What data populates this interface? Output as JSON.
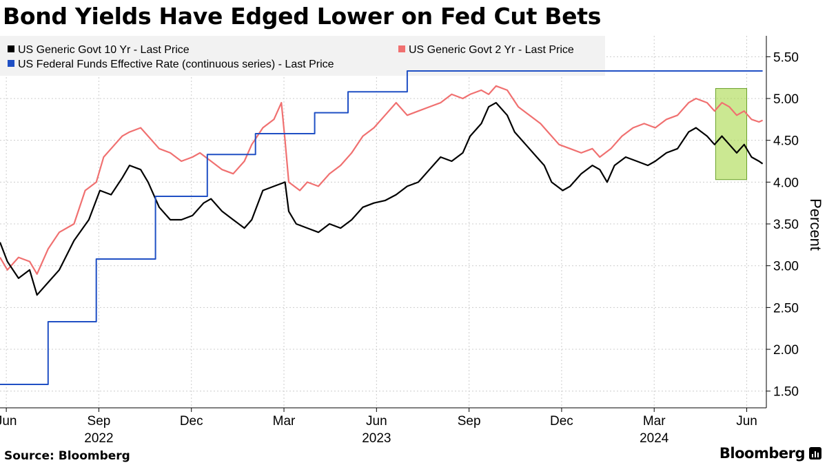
{
  "title": "Bond Yields Have Edged Lower on Fed Cut Bets",
  "source": "Source: Bloomberg",
  "brand": "Bloomberg",
  "chart_data": {
    "type": "line",
    "ylabel": "Percent",
    "ylim": [
      1.3,
      5.75
    ],
    "yticks": [
      1.5,
      2.0,
      2.5,
      3.0,
      3.5,
      4.0,
      4.5,
      5.0,
      5.5
    ],
    "ytick_labels": [
      "1.50",
      "2.00",
      "2.50",
      "3.00",
      "3.50",
      "4.00",
      "4.50",
      "5.00",
      "5.50"
    ],
    "xlim": [
      2022.4,
      2024.47
    ],
    "month_ticks": [
      {
        "label": "Jun",
        "x": 2022.417
      },
      {
        "label": "Sep",
        "x": 2022.667
      },
      {
        "label": "Dec",
        "x": 2022.917
      },
      {
        "label": "Mar",
        "x": 2023.167
      },
      {
        "label": "Jun",
        "x": 2023.417
      },
      {
        "label": "Sep",
        "x": 2023.667
      },
      {
        "label": "Dec",
        "x": 2023.917
      },
      {
        "label": "Mar",
        "x": 2024.167
      },
      {
        "label": "Jun",
        "x": 2024.417
      }
    ],
    "year_labels": [
      {
        "label": "2022",
        "x": 2022.667
      },
      {
        "label": "2023",
        "x": 2023.417
      },
      {
        "label": "2024",
        "x": 2024.167
      }
    ],
    "highlight": {
      "x": [
        2024.333,
        2024.417
      ],
      "y": [
        4.03,
        5.12
      ],
      "color": "#a8d84a"
    },
    "series": [
      {
        "name": "US Generic Govt 10 Yr - Last Price",
        "color": "#000000",
        "points": [
          [
            2022.4,
            3.28
          ],
          [
            2022.42,
            3.05
          ],
          [
            2022.45,
            2.85
          ],
          [
            2022.48,
            2.95
          ],
          [
            2022.5,
            2.65
          ],
          [
            2022.53,
            2.8
          ],
          [
            2022.56,
            2.95
          ],
          [
            2022.6,
            3.3
          ],
          [
            2022.64,
            3.55
          ],
          [
            2022.67,
            3.9
          ],
          [
            2022.7,
            3.85
          ],
          [
            2022.73,
            4.05
          ],
          [
            2022.75,
            4.2
          ],
          [
            2022.78,
            4.15
          ],
          [
            2022.8,
            4.0
          ],
          [
            2022.83,
            3.7
          ],
          [
            2022.86,
            3.55
          ],
          [
            2022.89,
            3.55
          ],
          [
            2022.92,
            3.6
          ],
          [
            2022.95,
            3.75
          ],
          [
            2022.97,
            3.8
          ],
          [
            2023.0,
            3.65
          ],
          [
            2023.03,
            3.55
          ],
          [
            2023.06,
            3.45
          ],
          [
            2023.08,
            3.55
          ],
          [
            2023.11,
            3.9
          ],
          [
            2023.14,
            3.95
          ],
          [
            2023.17,
            4.0
          ],
          [
            2023.18,
            3.65
          ],
          [
            2023.2,
            3.5
          ],
          [
            2023.23,
            3.45
          ],
          [
            2023.26,
            3.4
          ],
          [
            2023.29,
            3.5
          ],
          [
            2023.32,
            3.45
          ],
          [
            2023.35,
            3.55
          ],
          [
            2023.38,
            3.7
          ],
          [
            2023.41,
            3.75
          ],
          [
            2023.44,
            3.78
          ],
          [
            2023.47,
            3.85
          ],
          [
            2023.5,
            3.95
          ],
          [
            2023.53,
            4.0
          ],
          [
            2023.56,
            4.15
          ],
          [
            2023.59,
            4.3
          ],
          [
            2023.62,
            4.25
          ],
          [
            2023.65,
            4.35
          ],
          [
            2023.67,
            4.55
          ],
          [
            2023.7,
            4.7
          ],
          [
            2023.72,
            4.9
          ],
          [
            2023.74,
            4.95
          ],
          [
            2023.77,
            4.8
          ],
          [
            2023.79,
            4.6
          ],
          [
            2023.82,
            4.45
          ],
          [
            2023.85,
            4.3
          ],
          [
            2023.87,
            4.2
          ],
          [
            2023.89,
            4.0
          ],
          [
            2023.92,
            3.9
          ],
          [
            2023.94,
            3.95
          ],
          [
            2023.97,
            4.1
          ],
          [
            2024.0,
            4.2
          ],
          [
            2024.02,
            4.15
          ],
          [
            2024.04,
            4.0
          ],
          [
            2024.06,
            4.2
          ],
          [
            2024.09,
            4.3
          ],
          [
            2024.12,
            4.25
          ],
          [
            2024.15,
            4.2
          ],
          [
            2024.17,
            4.25
          ],
          [
            2024.2,
            4.35
          ],
          [
            2024.23,
            4.4
          ],
          [
            2024.26,
            4.6
          ],
          [
            2024.28,
            4.65
          ],
          [
            2024.31,
            4.55
          ],
          [
            2024.33,
            4.45
          ],
          [
            2024.35,
            4.55
          ],
          [
            2024.37,
            4.45
          ],
          [
            2024.39,
            4.35
          ],
          [
            2024.41,
            4.45
          ],
          [
            2024.43,
            4.3
          ],
          [
            2024.45,
            4.25
          ],
          [
            2024.46,
            4.22
          ]
        ]
      },
      {
        "name": "US Generic Govt 2 Yr - Last Price",
        "color": "#f07070",
        "points": [
          [
            2022.4,
            3.1
          ],
          [
            2022.42,
            2.95
          ],
          [
            2022.45,
            3.1
          ],
          [
            2022.48,
            3.05
          ],
          [
            2022.5,
            2.9
          ],
          [
            2022.53,
            3.2
          ],
          [
            2022.56,
            3.4
          ],
          [
            2022.6,
            3.5
          ],
          [
            2022.63,
            3.9
          ],
          [
            2022.66,
            4.0
          ],
          [
            2022.68,
            4.3
          ],
          [
            2022.7,
            4.4
          ],
          [
            2022.73,
            4.55
          ],
          [
            2022.75,
            4.6
          ],
          [
            2022.78,
            4.65
          ],
          [
            2022.8,
            4.55
          ],
          [
            2022.83,
            4.4
          ],
          [
            2022.86,
            4.35
          ],
          [
            2022.89,
            4.25
          ],
          [
            2022.92,
            4.3
          ],
          [
            2022.94,
            4.35
          ],
          [
            2022.97,
            4.25
          ],
          [
            2023.0,
            4.15
          ],
          [
            2023.03,
            4.1
          ],
          [
            2023.06,
            4.25
          ],
          [
            2023.08,
            4.45
          ],
          [
            2023.11,
            4.65
          ],
          [
            2023.14,
            4.75
          ],
          [
            2023.16,
            4.95
          ],
          [
            2023.17,
            4.5
          ],
          [
            2023.18,
            4.0
          ],
          [
            2023.21,
            3.9
          ],
          [
            2023.23,
            4.0
          ],
          [
            2023.26,
            3.95
          ],
          [
            2023.29,
            4.1
          ],
          [
            2023.32,
            4.2
          ],
          [
            2023.35,
            4.35
          ],
          [
            2023.38,
            4.55
          ],
          [
            2023.41,
            4.65
          ],
          [
            2023.44,
            4.8
          ],
          [
            2023.47,
            4.95
          ],
          [
            2023.5,
            4.8
          ],
          [
            2023.53,
            4.85
          ],
          [
            2023.56,
            4.9
          ],
          [
            2023.59,
            4.95
          ],
          [
            2023.62,
            5.05
          ],
          [
            2023.65,
            5.0
          ],
          [
            2023.67,
            5.05
          ],
          [
            2023.7,
            5.1
          ],
          [
            2023.72,
            5.05
          ],
          [
            2023.74,
            5.15
          ],
          [
            2023.77,
            5.1
          ],
          [
            2023.8,
            4.9
          ],
          [
            2023.83,
            4.8
          ],
          [
            2023.86,
            4.7
          ],
          [
            2023.88,
            4.6
          ],
          [
            2023.91,
            4.45
          ],
          [
            2023.94,
            4.4
          ],
          [
            2023.97,
            4.35
          ],
          [
            2024.0,
            4.4
          ],
          [
            2024.02,
            4.3
          ],
          [
            2024.05,
            4.4
          ],
          [
            2024.08,
            4.55
          ],
          [
            2024.11,
            4.65
          ],
          [
            2024.14,
            4.7
          ],
          [
            2024.17,
            4.65
          ],
          [
            2024.2,
            4.75
          ],
          [
            2024.23,
            4.8
          ],
          [
            2024.26,
            4.95
          ],
          [
            2024.28,
            5.0
          ],
          [
            2024.31,
            4.95
          ],
          [
            2024.33,
            4.85
          ],
          [
            2024.35,
            4.95
          ],
          [
            2024.37,
            4.9
          ],
          [
            2024.39,
            4.8
          ],
          [
            2024.41,
            4.85
          ],
          [
            2024.43,
            4.75
          ],
          [
            2024.45,
            4.72
          ],
          [
            2024.46,
            4.74
          ]
        ]
      },
      {
        "name": "US Federal Funds Effective Rate (continuous series) - Last Price",
        "color": "#1f4fc4",
        "points": [
          [
            2022.4,
            1.58
          ],
          [
            2022.53,
            1.58
          ],
          [
            2022.53,
            2.33
          ],
          [
            2022.66,
            2.33
          ],
          [
            2022.66,
            3.08
          ],
          [
            2022.82,
            3.08
          ],
          [
            2022.82,
            3.83
          ],
          [
            2022.96,
            3.83
          ],
          [
            2022.96,
            4.33
          ],
          [
            2023.09,
            4.33
          ],
          [
            2023.09,
            4.58
          ],
          [
            2023.25,
            4.58
          ],
          [
            2023.25,
            4.83
          ],
          [
            2023.34,
            4.83
          ],
          [
            2023.34,
            5.08
          ],
          [
            2023.5,
            5.08
          ],
          [
            2023.5,
            5.33
          ],
          [
            2024.46,
            5.33
          ]
        ]
      }
    ]
  }
}
